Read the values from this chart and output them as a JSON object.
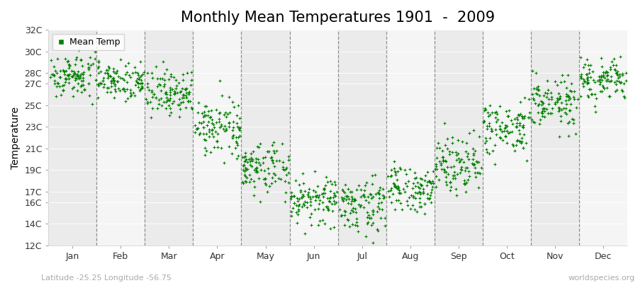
{
  "title": "Monthly Mean Temperatures 1901  -  2009",
  "ylabel": "Temperature",
  "yticks": [
    12,
    14,
    16,
    17,
    19,
    21,
    23,
    25,
    27,
    28,
    30,
    32
  ],
  "ytick_labels": [
    "12C",
    "14C",
    "16C",
    "17C",
    "19C",
    "21C",
    "23C",
    "25C",
    "27C",
    "28C",
    "30C",
    "32C"
  ],
  "ylim": [
    12,
    32
  ],
  "months": [
    "Jan",
    "Feb",
    "Mar",
    "Apr",
    "May",
    "Jun",
    "Jul",
    "Aug",
    "Sep",
    "Oct",
    "Nov",
    "Dec"
  ],
  "dot_color": "#008000",
  "bg_color_light": "#ebebeb",
  "bg_color_dark": "#f5f5f5",
  "grid_color": "#888888",
  "title_fontsize": 15,
  "axis_label_fontsize": 10,
  "tick_fontsize": 9,
  "legend_label": "Mean Temp",
  "bottom_left_text": "Latitude -25.25 Longitude -56.75",
  "bottom_right_text": "worldspecies.org",
  "n_years": 109,
  "monthly_means": [
    27.8,
    27.4,
    26.2,
    23.0,
    19.2,
    16.2,
    15.8,
    17.2,
    19.8,
    22.8,
    25.2,
    27.3
  ],
  "monthly_stds": [
    1.0,
    0.9,
    1.1,
    1.2,
    1.3,
    1.1,
    1.2,
    1.1,
    1.3,
    1.3,
    1.2,
    1.0
  ]
}
